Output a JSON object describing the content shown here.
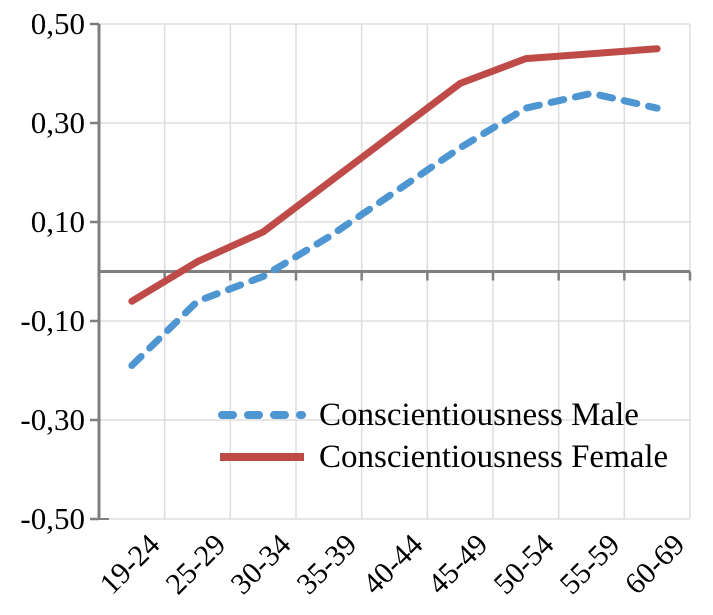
{
  "chart_data": {
    "type": "line",
    "title": "",
    "xlabel": "",
    "ylabel": "",
    "categories": [
      "19-24",
      "25-29",
      "30-34",
      "35-39",
      "40-44",
      "45-49",
      "50-54",
      "55-59",
      "60-69"
    ],
    "series": [
      {
        "name": "Conscientiousness Male",
        "style": "dashed",
        "color": "#4E96D2",
        "values": [
          -0.19,
          -0.06,
          -0.01,
          0.07,
          0.16,
          0.25,
          0.33,
          0.36,
          0.33
        ]
      },
      {
        "name": "Conscientiousness Female",
        "style": "solid",
        "color": "#BE4B48",
        "values": [
          -0.06,
          0.02,
          0.08,
          0.18,
          0.28,
          0.38,
          0.43,
          0.44,
          0.45
        ]
      }
    ],
    "ylim": [
      -0.5,
      0.5
    ],
    "y_ticks": [
      {
        "label": "0,50",
        "value": 0.5
      },
      {
        "label": "0,30",
        "value": 0.3
      },
      {
        "label": "0,10",
        "value": 0.1
      },
      {
        "label": "-0,10",
        "value": -0.1
      },
      {
        "label": "-0,30",
        "value": -0.3
      },
      {
        "label": "-0,50",
        "value": -0.5
      }
    ],
    "grid": true,
    "legend_position": "inside-bottom-center",
    "colors": {
      "gridline": "#DDDDDD",
      "axis": "#7F7F7F",
      "text": "#000000",
      "background": "#FFFFFF"
    }
  }
}
